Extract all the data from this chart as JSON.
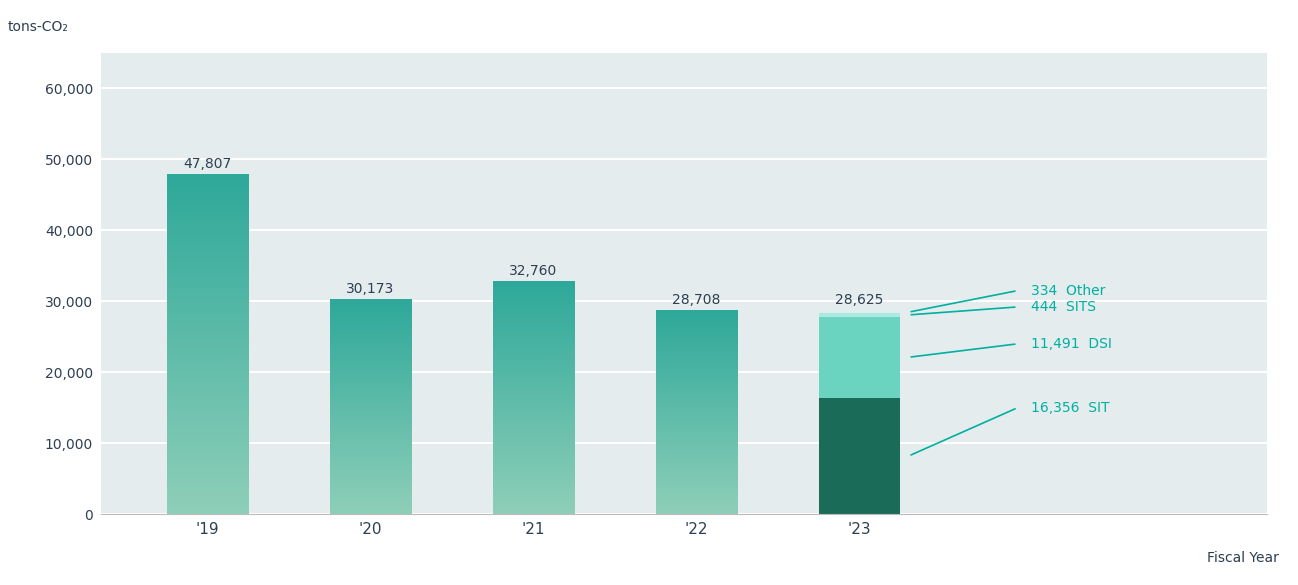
{
  "years": [
    "'19",
    "'20",
    "'21",
    "'22",
    "'23"
  ],
  "totals": [
    47807,
    30173,
    32760,
    28708,
    28625
  ],
  "bar_gradient_top": "#2ea89a",
  "bar_gradient_bottom": "#8ecfb8",
  "stacked_23": {
    "SIT": 16356,
    "DSI": 11491,
    "SITS": 444,
    "Other": 334
  },
  "stacked_colors": {
    "SIT": "#1a6b58",
    "DSI": "#6ad4c0",
    "SITS": "#b0e8e0",
    "Other": "#d5f2ef"
  },
  "annotation_color": "#00b0a0",
  "annotation_labels": [
    "334  Other",
    "444  SITS",
    "11,491  DSI",
    "16,356  SIT"
  ],
  "title_y_label": "tons-CO₂",
  "xlabel": "Fiscal Year",
  "ylim": [
    0,
    65000
  ],
  "yticks": [
    0,
    10000,
    20000,
    30000,
    40000,
    50000,
    60000
  ],
  "ytick_labels": [
    "0",
    "10,000",
    "20,000",
    "30,000",
    "40,000",
    "50,000",
    "60,000"
  ],
  "background_color": "#e5ecee",
  "figure_bg": "#ffffff",
  "tick_label_color": "#2d3f52",
  "value_label_color": "#2d3f52",
  "value_label_fontsize": 10,
  "axis_label_fontsize": 10,
  "bar_width": 0.5
}
